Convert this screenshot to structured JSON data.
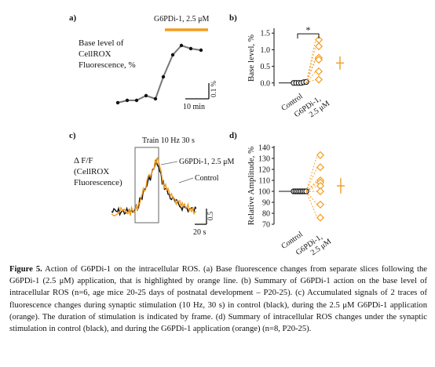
{
  "panel_letters": {
    "a": "a)",
    "b": "b)",
    "c": "c)",
    "d": "d)"
  },
  "panel_a": {
    "drug_label": "G6PDi-1, 2.5 μM",
    "ylabel_lines": [
      "Base level of",
      "CellROX",
      "Fluorescence, %"
    ],
    "scalebar_y": "0.1 %",
    "scalebar_x": "10 min",
    "colors": {
      "trace": "#777777",
      "drug_bar": "#f39c1f"
    }
  },
  "panel_c": {
    "stim_label": "Train 10 Hz 30 s",
    "ylabel_lines": [
      "Δ F/F",
      "(CellROX",
      "Fluorescence)"
    ],
    "legend_drug": "G6PDi-1, 2.5 μM",
    "legend_control": "Control",
    "scalebar_y": "0.5",
    "scalebar_x": "20 s",
    "colors": {
      "control": "#111111",
      "drug": "#f39c1f"
    }
  },
  "chart_data": [
    {
      "panel": "b",
      "type": "scatter",
      "ylabel": "Base level, %",
      "categories": [
        "Control",
        "G6PDi-1, 2.5 μM"
      ],
      "ylim": [
        -0.1,
        1.6
      ],
      "yticks": [
        "0.0",
        "0.5",
        "1.0",
        "1.5"
      ],
      "control_points": [
        0.0,
        0.0,
        0.0,
        0.0,
        0.02,
        0.03
      ],
      "drug_points": [
        1.3,
        1.1,
        0.76,
        0.7,
        0.35,
        0.1
      ],
      "drug_mean": 0.6,
      "drug_sem": 0.2,
      "significance": "*"
    },
    {
      "panel": "d",
      "type": "scatter",
      "ylabel": "Relative Amplitude, %",
      "categories": [
        "Control",
        "G6PDi-1, 2.5 μM"
      ],
      "ylim": [
        70,
        140
      ],
      "yticks": [
        "70",
        "80",
        "90",
        "100",
        "110",
        "120",
        "130",
        "140"
      ],
      "control_points": [
        100,
        100,
        100,
        100,
        100,
        100,
        100,
        100
      ],
      "drug_points": [
        133,
        122,
        110,
        108,
        105,
        100,
        88,
        76
      ],
      "drug_mean": 105,
      "drug_sem": 7
    }
  ],
  "caption": {
    "label": "Figure 5.",
    "text": " Action of G6PDi-1 on the intracellular ROS. (a) Base fluorescence changes from separate slices following the G6PDi-1 (2.5 μM) application, that is highlighted by orange line. (b) Summary of G6PDi-1 action on the base level of intracellular ROS (n=6, age mice 20-25 days of postnatal development – P20-25). (c) Accumulated signals of 2 traces of fluorescence changes during synaptic stimulation (10 Hz, 30 s) in control (black), during the 2.5 μM G6PDi-1 application (orange). The duration of stimulation is indicated by frame. (d) Summary of intracellular ROS changes under the synaptic stimulation in control (black), and during the G6PDi-1 application (orange) (n=8, P20-25)."
  }
}
